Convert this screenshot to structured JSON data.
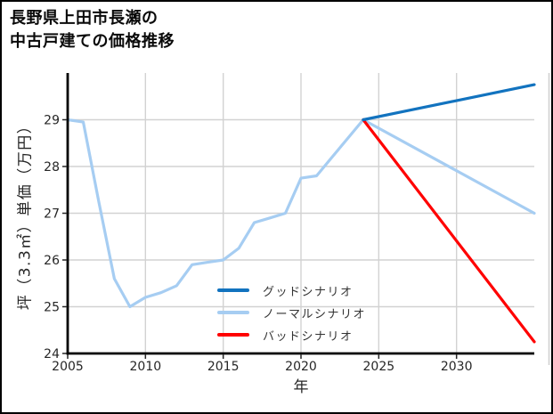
{
  "frame": {
    "background": "#ffffff",
    "border_color": "#000000"
  },
  "title": {
    "line1": "長野県上田市長瀬の",
    "line2": "中古戸建ての価格推移"
  },
  "chart_data": {
    "type": "line",
    "title": "長野県上田市長瀬の中古戸建ての価格推移",
    "xlabel": "年",
    "ylabel": "坪（3.3㎡）単価（万円）",
    "xlim": [
      2005,
      2035
    ],
    "ylim": [
      24,
      30
    ],
    "xticks": [
      2005,
      2010,
      2015,
      2020,
      2025,
      2030
    ],
    "yticks": [
      24,
      25,
      26,
      27,
      28,
      29
    ],
    "grid": true,
    "legend_position": "inside-lower-center-no-frame",
    "draw_order": [
      "normal",
      "bad",
      "good"
    ],
    "colors": {
      "grid": "#d2d2d2",
      "axis": "#000000",
      "tick": "#262626"
    },
    "series": [
      {
        "id": "good",
        "name": "グッドシナリオ",
        "color": "#1273bf",
        "x": [
          2024,
          2035
        ],
        "y": [
          29.0,
          29.75
        ]
      },
      {
        "id": "normal",
        "name": "ノーマルシナリオ",
        "color": "#a6cdf2",
        "x": [
          2005,
          2006,
          2007,
          2008,
          2009,
          2010,
          2011,
          2012,
          2013,
          2014,
          2015,
          2016,
          2017,
          2018,
          2019,
          2020,
          2021,
          2022,
          2023,
          2024,
          2035
        ],
        "y": [
          29.0,
          28.95,
          27.25,
          25.6,
          25.0,
          25.2,
          25.3,
          25.45,
          25.9,
          25.95,
          26.0,
          26.25,
          26.8,
          26.9,
          27.0,
          27.75,
          27.8,
          28.2,
          28.6,
          29.0,
          27.0
        ]
      },
      {
        "id": "bad",
        "name": "バッドシナリオ",
        "color": "#ff0000",
        "x": [
          2024,
          2035
        ],
        "y": [
          29.0,
          24.25
        ]
      }
    ]
  }
}
